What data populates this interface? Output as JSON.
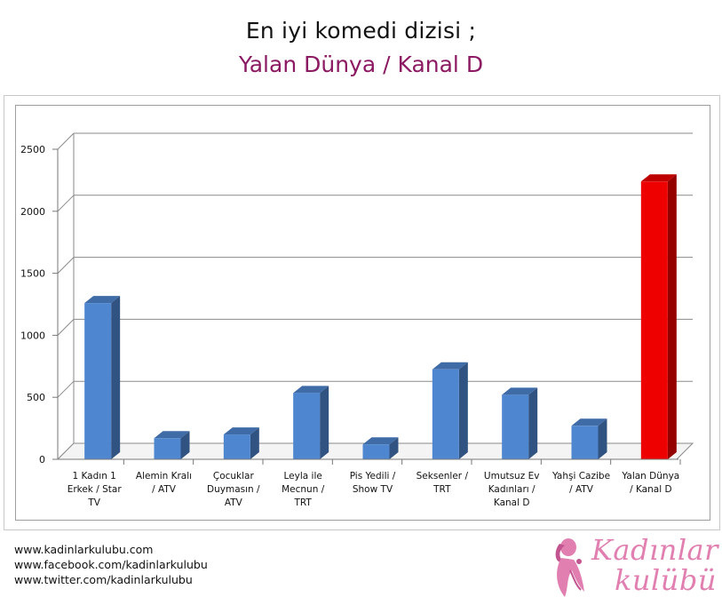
{
  "title": {
    "line1": "En iyi komedi dizisi ;",
    "line2": "Yalan Dünya / Kanal D"
  },
  "colors": {
    "bar_default": "#4f86d0",
    "bar_highlight": "#ee0000",
    "title_accent": "#8b1a63",
    "logo": "#e07fb0"
  },
  "chart_data": {
    "type": "bar",
    "style": "3d-column",
    "title": "",
    "xlabel": "",
    "ylabel": "",
    "ylim": [
      0,
      2500
    ],
    "yticks": [
      0,
      500,
      1000,
      1500,
      2000,
      2500
    ],
    "grid": true,
    "legend": "none",
    "categories": [
      [
        "1 Kadın 1",
        "Erkek / Star",
        "TV"
      ],
      [
        "Alemin Kralı",
        "/ ATV"
      ],
      [
        "Çocuklar",
        "Duymasın /",
        "ATV"
      ],
      [
        "Leyla ile",
        "Mecnun /",
        "TRT"
      ],
      [
        "Pis Yedili /",
        "Show TV"
      ],
      [
        "Seksenler /",
        "TRT"
      ],
      [
        "Umutsuz Ev",
        "Kadınları /",
        "Kanal D"
      ],
      [
        "Yahşi Cazibe",
        "/ ATV"
      ],
      [
        "Yalan Dünya",
        "/ Kanal D"
      ]
    ],
    "values": [
      1260,
      170,
      200,
      535,
      120,
      725,
      520,
      270,
      2240
    ],
    "highlight_index": 8
  },
  "footer": {
    "links": [
      "www.kadinlarkulubu.com",
      "www.facebook.com/kadinlarkulubu",
      "www.twitter.com/kadinlarkulubu"
    ]
  },
  "logo": {
    "word1": "Kadınlar",
    "word2": "kulübü",
    "icon": "woman-silhouette-icon"
  }
}
